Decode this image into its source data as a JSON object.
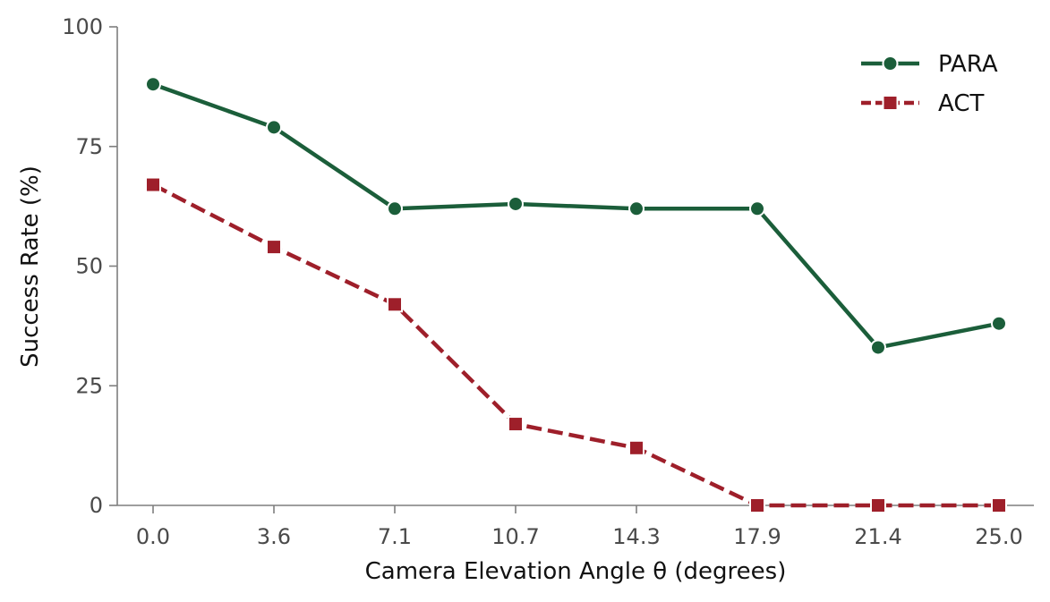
{
  "chart_data": {
    "type": "line",
    "title": "",
    "xlabel": "Camera Elevation Angle θ (degrees)",
    "ylabel": "Success Rate (%)",
    "x": [
      0.0,
      3.6,
      7.1,
      10.7,
      14.3,
      17.9,
      21.4,
      25.0
    ],
    "x_tick_labels": [
      "0.0",
      "3.6",
      "7.1",
      "10.7",
      "14.3",
      "17.9",
      "21.4",
      "25.0"
    ],
    "y_ticks": [
      0,
      25,
      50,
      75,
      100
    ],
    "y_tick_labels": [
      "0",
      "25",
      "50",
      "75",
      "100"
    ],
    "ylim": [
      0,
      100
    ],
    "grid": false,
    "legend_position": "top-right",
    "series": [
      {
        "name": "PARA",
        "values": [
          88,
          79,
          62,
          63,
          62,
          62,
          33,
          38
        ],
        "color": "#1b5e3a",
        "line_style": "solid",
        "marker": "circle"
      },
      {
        "name": "ACT",
        "values": [
          67,
          54,
          42,
          17,
          12,
          0,
          0,
          0
        ],
        "color": "#9e1f2a",
        "line_style": "dashed",
        "marker": "square"
      }
    ]
  }
}
